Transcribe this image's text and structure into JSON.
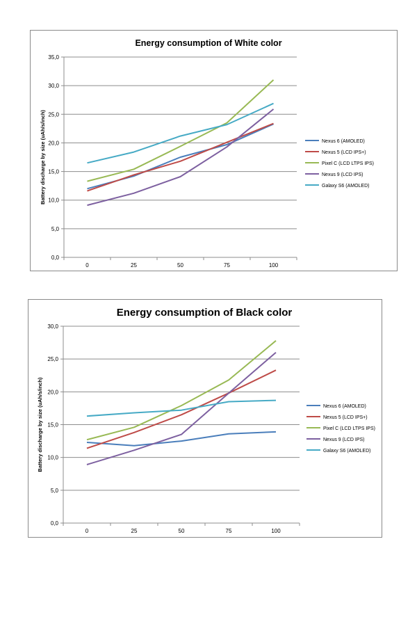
{
  "colors": {
    "nexus6": "#4a7ebb",
    "nexus5": "#be4b48",
    "pixelc": "#98b954",
    "nexus9": "#7d60a0",
    "galaxys6": "#46aac5",
    "grid": "#8c8c8c",
    "axis": "#8c8c8c",
    "text": "#000000"
  },
  "chart_data": [
    {
      "type": "line",
      "title": "Energy consumption of White color",
      "xlabel": "",
      "ylabel": "Battery discharge by size (uAh/s/inch)",
      "categories": [
        "0",
        "25",
        "50",
        "75",
        "100"
      ],
      "ylim": [
        0,
        35
      ],
      "yticks": [
        "0,0",
        "5,0",
        "10,0",
        "15,0",
        "20,0",
        "25,0",
        "30,0",
        "35,0"
      ],
      "grid": "horizontal",
      "legend_position": "right",
      "series": [
        {
          "name": "Nexus 6 (AMOLED)",
          "color_key": "nexus6",
          "values": [
            12.0,
            14.2,
            17.5,
            19.7,
            23.3
          ]
        },
        {
          "name": "Nexus 5 (LCD IPS+)",
          "color_key": "nexus5",
          "values": [
            11.6,
            14.4,
            16.8,
            20.1,
            23.4
          ]
        },
        {
          "name": "Pixel C (LCD LTPS IPS)",
          "color_key": "pixelc",
          "values": [
            13.3,
            15.4,
            19.4,
            23.5,
            31.0
          ]
        },
        {
          "name": "Nexus 9 (LCD IPS)",
          "color_key": "nexus9",
          "values": [
            9.1,
            11.2,
            14.1,
            19.3,
            25.9
          ]
        },
        {
          "name": "Galaxy S6 (AMOLED)",
          "color_key": "galaxys6",
          "values": [
            16.5,
            18.4,
            21.2,
            23.2,
            26.9
          ]
        }
      ]
    },
    {
      "type": "line",
      "title": "Energy consumption of Black color",
      "xlabel": "",
      "ylabel": "Battery discharge by size (uAh/s/inch)",
      "categories": [
        "0",
        "25",
        "50",
        "75",
        "100"
      ],
      "ylim": [
        0,
        30
      ],
      "yticks": [
        "0,0",
        "5,0",
        "10,0",
        "15,0",
        "20,0",
        "25,0",
        "30,0"
      ],
      "grid": "horizontal",
      "legend_position": "right",
      "series": [
        {
          "name": "Nexus 6 (AMOLED)",
          "color_key": "nexus6",
          "values": [
            12.3,
            11.8,
            12.5,
            13.6,
            13.9
          ]
        },
        {
          "name": "Nexus 5 (LCD IPS+)",
          "color_key": "nexus5",
          "values": [
            11.4,
            13.8,
            16.5,
            19.8,
            23.3
          ]
        },
        {
          "name": "Pixel C (LCD LTPS IPS)",
          "color_key": "pixelc",
          "values": [
            12.7,
            14.6,
            17.9,
            21.8,
            27.8
          ]
        },
        {
          "name": "Nexus 9 (LCD IPS)",
          "color_key": "nexus9",
          "values": [
            8.9,
            11.1,
            13.5,
            19.8,
            26.0
          ]
        },
        {
          "name": "Galaxy S6 (AMOLED)",
          "color_key": "galaxys6",
          "values": [
            16.3,
            16.8,
            17.2,
            18.5,
            18.7
          ]
        }
      ]
    }
  ]
}
